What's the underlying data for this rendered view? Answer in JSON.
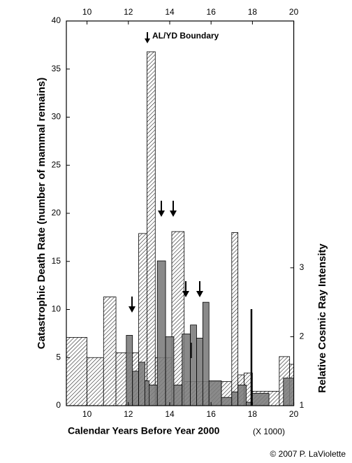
{
  "chart_data": {
    "type": "histogram",
    "annotation": "AL/YD Boundary",
    "xlabel": "Calendar Years  Before Year 2000",
    "xunit": "(X 1000)",
    "ylabel": "Catastrophic Death Rate  (number of mammal remains)",
    "y2label": "Relative Cosmic Ray Intensity",
    "credit": "© 2007 P. LaViolette",
    "xlim": [
      9,
      20
    ],
    "xticks": [
      10,
      12,
      14,
      16,
      18,
      20
    ],
    "ylim": [
      0,
      40
    ],
    "yticks": [
      0,
      5,
      10,
      15,
      20,
      25,
      30,
      35,
      40
    ],
    "y2lim": [
      1,
      6.58
    ],
    "y2ticks": [
      1,
      2,
      3
    ],
    "series": [
      {
        "color": "#ffffff",
        "hatch": true,
        "bins": [
          9,
          10,
          10.8,
          11.4,
          12.5,
          12.9,
          13.3,
          14.1,
          14.7,
          16.5,
          17,
          17.3,
          17.6,
          18,
          19.3,
          19.8,
          20
        ],
        "values": [
          7.1,
          5.0,
          11.3,
          5.5,
          17.9,
          36.8,
          5.0,
          18.1,
          2.5,
          2.5,
          18,
          3.2,
          3.4,
          1.5,
          5.1,
          4.3
        ]
      },
      {
        "color": "#7a7a7a",
        "axis": "y2",
        "bins": [
          11.9,
          12.2,
          12.5,
          12.8,
          13.0,
          13.4,
          13.8,
          14.2,
          14.6,
          15.0,
          15.3,
          15.6,
          15.9,
          16.5,
          17.0,
          17.3,
          17.7,
          18.0,
          18.8,
          19.5,
          20
        ],
        "values": [
          2.02,
          1.5,
          1.63,
          1.36,
          1.3,
          3.1,
          2.0,
          1.3,
          2.04,
          2.17,
          1.98,
          2.5,
          1.36,
          1.12,
          1.2,
          1.3,
          1.05,
          1.18,
          1.0,
          1.4
        ]
      }
    ]
  }
}
